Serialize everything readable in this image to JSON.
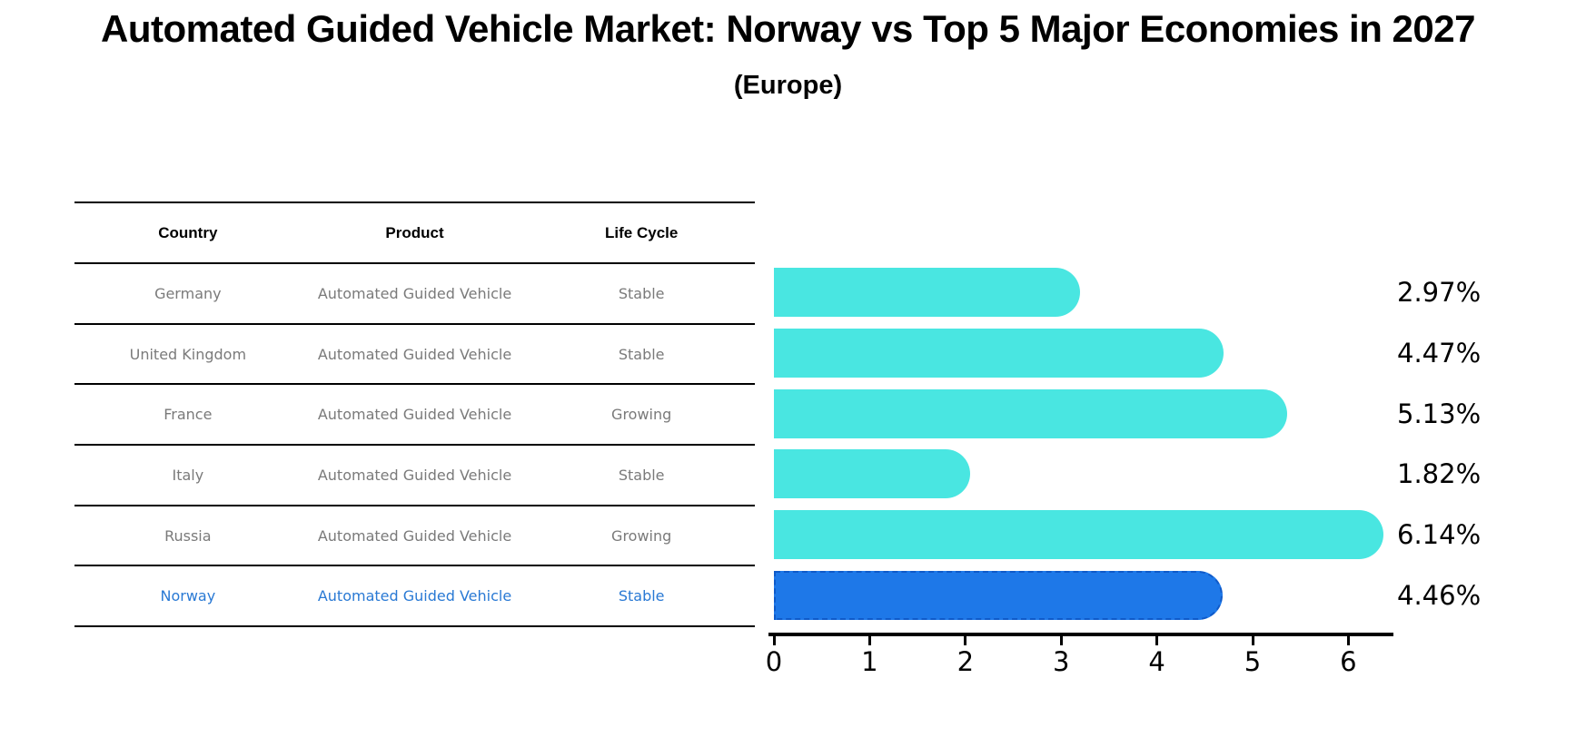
{
  "title": "Automated Guided Vehicle Market: Norway vs Top 5 Major Economies in 2027",
  "subtitle": "(Europe)",
  "colors": {
    "bar": "#49E6E1",
    "highlight_bar": "#1E78E8",
    "highlight_bar_border": "#0F5AC9",
    "highlight_text": "#2979D4",
    "table_text": "#7A7A7A",
    "axis": "#000000",
    "background": "#FFFFFF"
  },
  "table": {
    "headers": [
      "Country",
      "Product",
      "Life Cycle"
    ],
    "rows": [
      {
        "country": "Germany",
        "product": "Automated Guided Vehicle",
        "life_cycle": "Stable",
        "highlight": false
      },
      {
        "country": "United Kingdom",
        "product": "Automated Guided Vehicle",
        "life_cycle": "Stable",
        "highlight": false
      },
      {
        "country": "France",
        "product": "Automated Guided Vehicle",
        "life_cycle": "Growing",
        "highlight": false
      },
      {
        "country": "Italy",
        "product": "Automated Guided Vehicle",
        "life_cycle": "Stable",
        "highlight": false
      },
      {
        "country": "Russia",
        "product": "Automated Guided Vehicle",
        "life_cycle": "Growing",
        "highlight": false
      },
      {
        "country": "Norway",
        "product": "Automated Guided Vehicle",
        "life_cycle": "Stable",
        "highlight": true
      }
    ]
  },
  "chart_data": {
    "type": "bar",
    "orientation": "horizontal",
    "title": "Automated Guided Vehicle Market: Norway vs Top 5 Major Economies in 2027",
    "subtitle": "(Europe)",
    "categories": [
      "Germany",
      "United Kingdom",
      "France",
      "Italy",
      "Russia",
      "Norway"
    ],
    "values": [
      2.97,
      4.47,
      5.13,
      1.82,
      6.14,
      4.46
    ],
    "value_labels": [
      "2.97%",
      "4.47%",
      "5.13%",
      "1.82%",
      "6.14%",
      "4.46%"
    ],
    "unit": "%",
    "highlight_index": 5,
    "xlim": [
      0,
      6.45
    ],
    "xticks": [
      0,
      1,
      2,
      3,
      4,
      5,
      6
    ],
    "grid": false,
    "legend": false,
    "xlabel": "",
    "ylabel": ""
  }
}
